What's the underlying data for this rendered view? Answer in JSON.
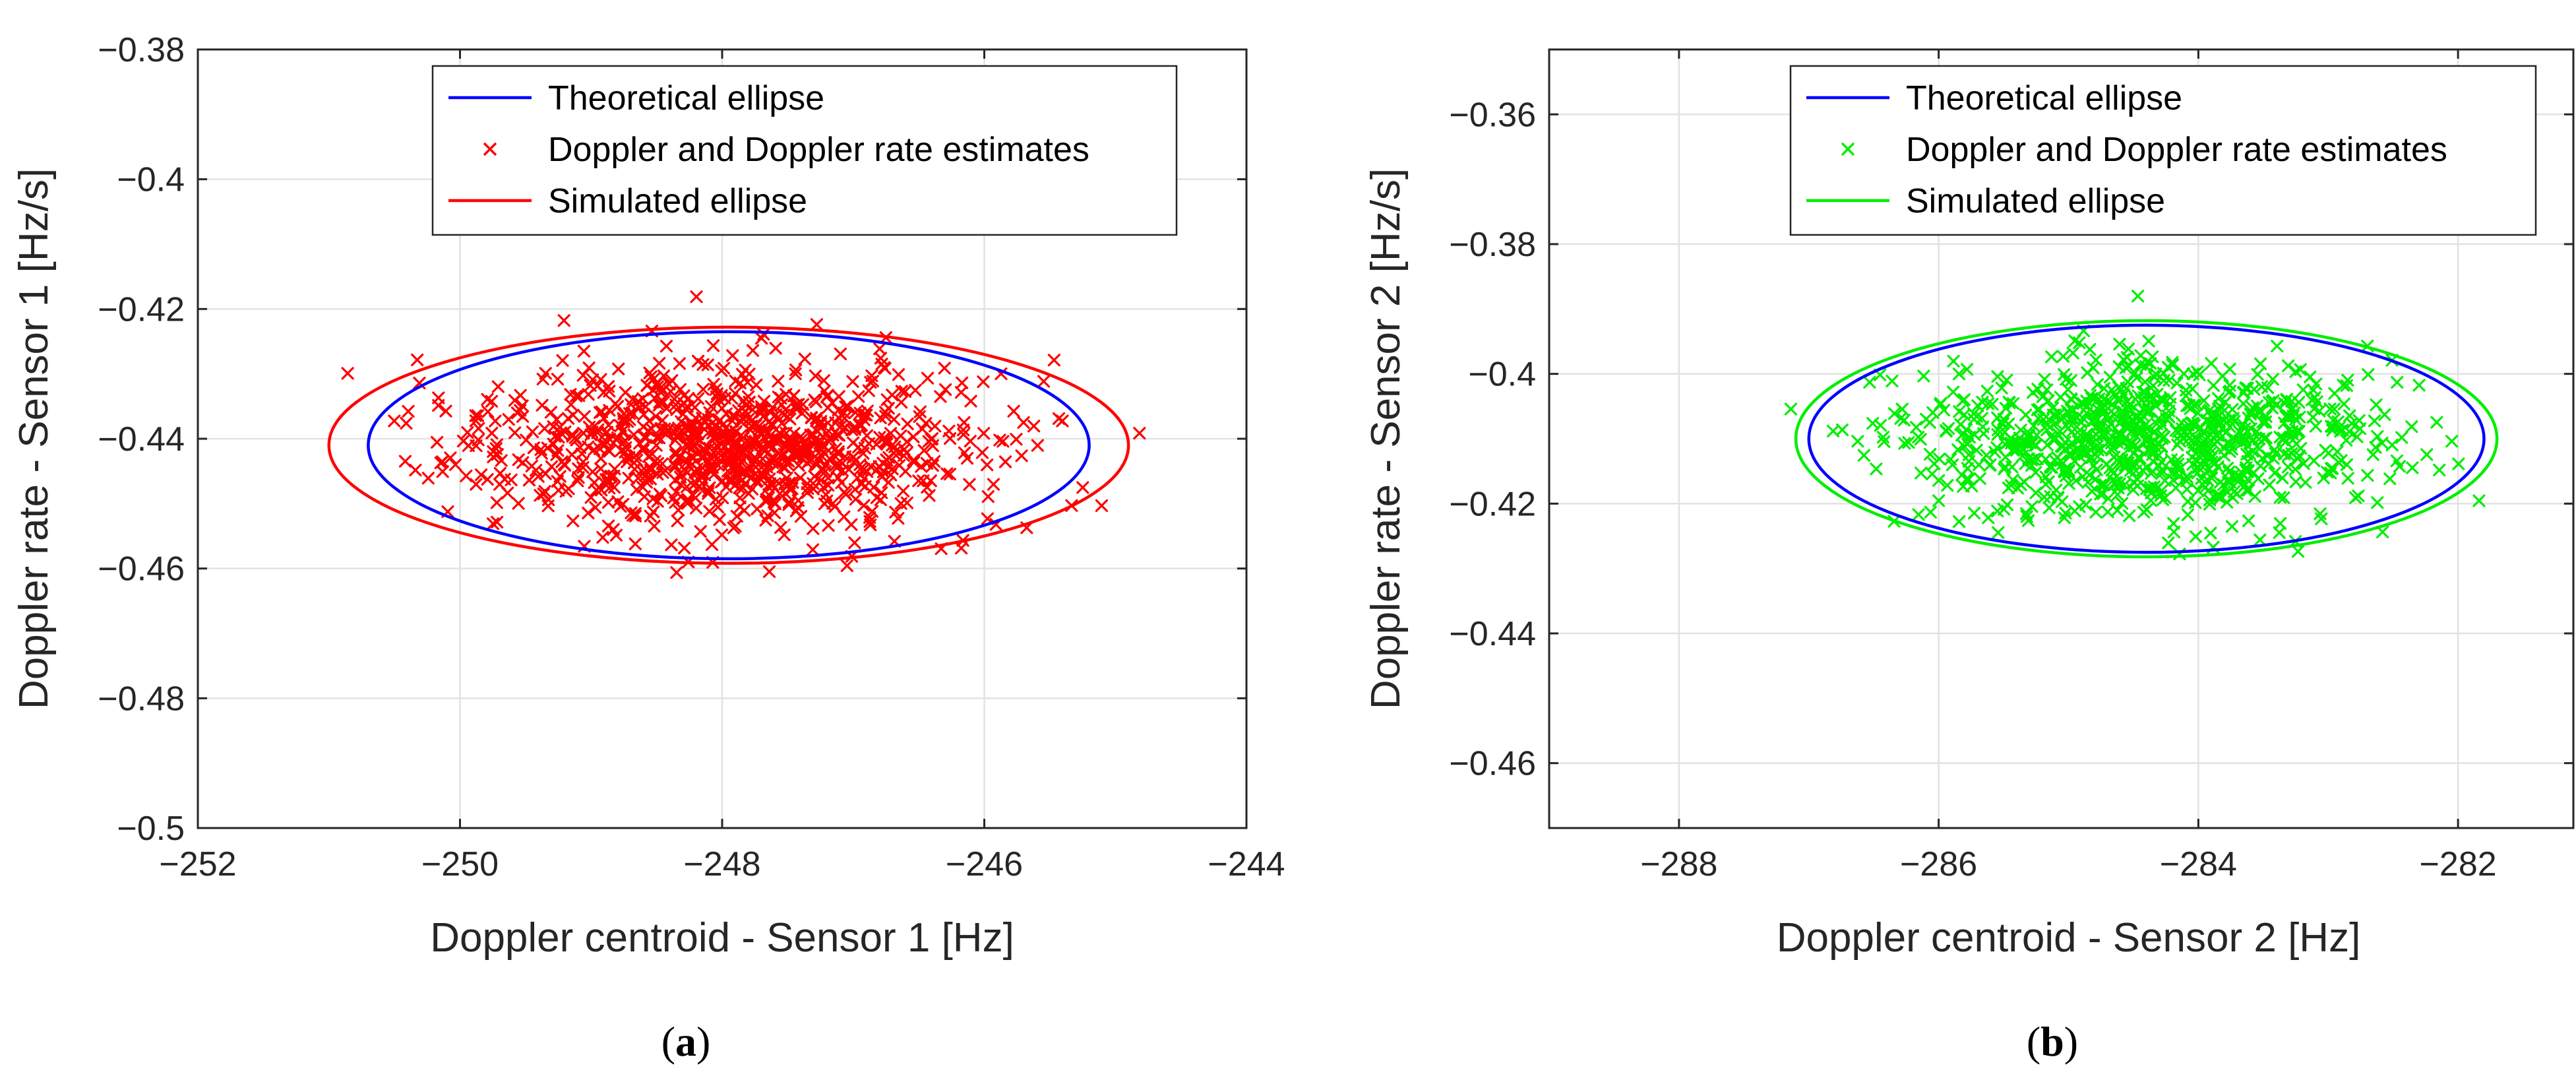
{
  "chart_data": [
    {
      "type": "scatter",
      "panel_label": "a",
      "xlabel": "Doppler centroid - Sensor 1 [Hz]",
      "ylabel": "Doppler rate - Sensor 1 [Hz/s]",
      "xlim": [
        -252,
        -244
      ],
      "ylim": [
        -0.5,
        -0.38
      ],
      "xticks": [
        -252,
        -250,
        -248,
        -246,
        -244
      ],
      "yticks": [
        -0.5,
        -0.48,
        -0.46,
        -0.44,
        -0.42,
        -0.4,
        -0.38
      ],
      "grid": true,
      "legend_position": "top-right",
      "series": [
        {
          "name": "Theoretical ellipse",
          "kind": "ellipse",
          "color": "#0000ff",
          "center": [
            -247.95,
            -0.441
          ],
          "semi_axes": [
            2.75,
            0.0175
          ]
        },
        {
          "name": "Doppler and Doppler rate estimates",
          "kind": "scatter",
          "marker": "x",
          "color": "#ff0000",
          "count": 1000,
          "center": [
            -247.95,
            -0.441
          ],
          "std": [
            0.95,
            0.0062
          ],
          "seed": 17
        },
        {
          "name": "Simulated ellipse",
          "kind": "ellipse",
          "color": "#ff0000",
          "center": [
            -247.95,
            -0.441
          ],
          "semi_axes": [
            3.05,
            0.0182
          ]
        }
      ]
    },
    {
      "type": "scatter",
      "panel_label": "b",
      "xlabel": "Doppler centroid - Sensor 2 [Hz]",
      "ylabel": "Doppler rate - Sensor 2 [Hz/s]",
      "xlim": [
        -289,
        -281
      ],
      "ylim": [
        -0.47,
        -0.35
      ],
      "xticks": [
        -288,
        -286,
        -284,
        -282
      ],
      "yticks": [
        -0.46,
        -0.44,
        -0.42,
        -0.4,
        -0.38,
        -0.36
      ],
      "grid": true,
      "legend_position": "top-right",
      "series": [
        {
          "name": "Theoretical ellipse",
          "kind": "ellipse",
          "color": "#0000ff",
          "center": [
            -284.4,
            -0.41
          ],
          "semi_axes": [
            2.6,
            0.0175
          ]
        },
        {
          "name": "Doppler and Doppler rate estimates",
          "kind": "scatter",
          "marker": "x",
          "color": "#00ee00",
          "count": 900,
          "center": [
            -284.4,
            -0.41
          ],
          "std": [
            0.9,
            0.0062
          ],
          "seed": 41
        },
        {
          "name": "Simulated ellipse",
          "kind": "ellipse",
          "color": "#00ee00",
          "center": [
            -284.4,
            -0.41
          ],
          "semi_axes": [
            2.7,
            0.0182
          ]
        }
      ]
    }
  ]
}
